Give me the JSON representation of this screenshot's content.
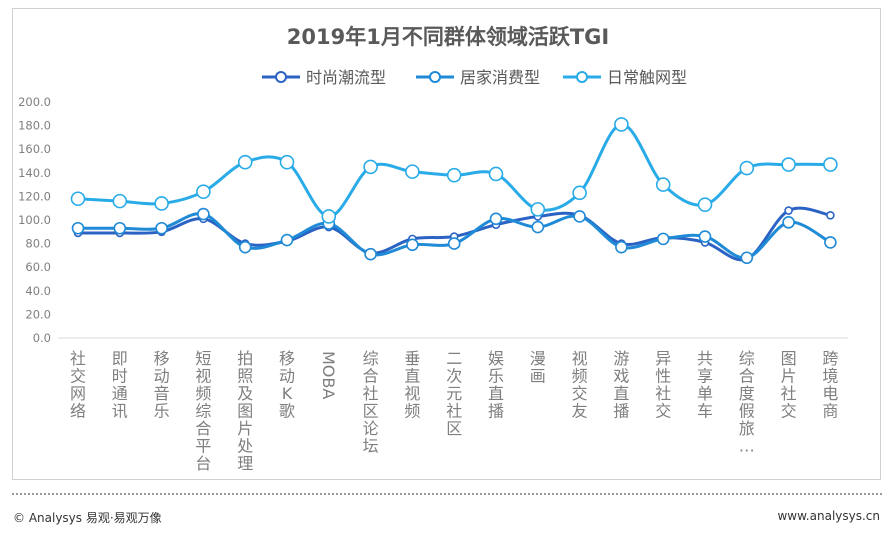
{
  "chart_data": {
    "type": "line",
    "title": "2019年1月不同群体领域活跃TGI",
    "xlabel": "",
    "ylabel": "",
    "ylim": [
      0,
      200
    ],
    "yticks": [
      "0.0",
      "20.0",
      "40.0",
      "60.0",
      "80.0",
      "100.0",
      "120.0",
      "140.0",
      "160.0",
      "180.0",
      "200.0"
    ],
    "grid": false,
    "legend_position": "top-center",
    "categories": [
      "社交网络",
      "即时通讯",
      "移动音乐",
      "短视频综合平台",
      "拍照及图片处理",
      "移动K歌",
      "MOBA",
      "综合社区论坛",
      "垂直视频",
      "二次元社区",
      "娱乐直播",
      "漫画",
      "视频交友",
      "游戏直播",
      "异性社交",
      "共享单车",
      "综合度假旅…",
      "图片社交",
      "跨境电商"
    ],
    "series": [
      {
        "name": "时尚潮流型",
        "color": "#2b63c4",
        "values": [
          89,
          89,
          90,
          101,
          80,
          82,
          94,
          72,
          84,
          86,
          96,
          103,
          104,
          80,
          85,
          81,
          67,
          108,
          104
        ]
      },
      {
        "name": "居家消费型",
        "color": "#1f8ad6",
        "values": [
          93,
          93,
          93,
          105,
          77,
          83,
          97,
          71,
          79,
          80,
          101,
          94,
          103,
          77,
          84,
          86,
          68,
          98,
          81
        ]
      },
      {
        "name": "日常触网型",
        "color": "#29abe8",
        "values": [
          118,
          116,
          114,
          124,
          149,
          149,
          103,
          145,
          141,
          138,
          139,
          109,
          123,
          181,
          130,
          113,
          144,
          147,
          147
        ]
      }
    ]
  },
  "footer": {
    "left": "© Analysys 易观·易观万像",
    "right": "www.analysys.cn"
  }
}
